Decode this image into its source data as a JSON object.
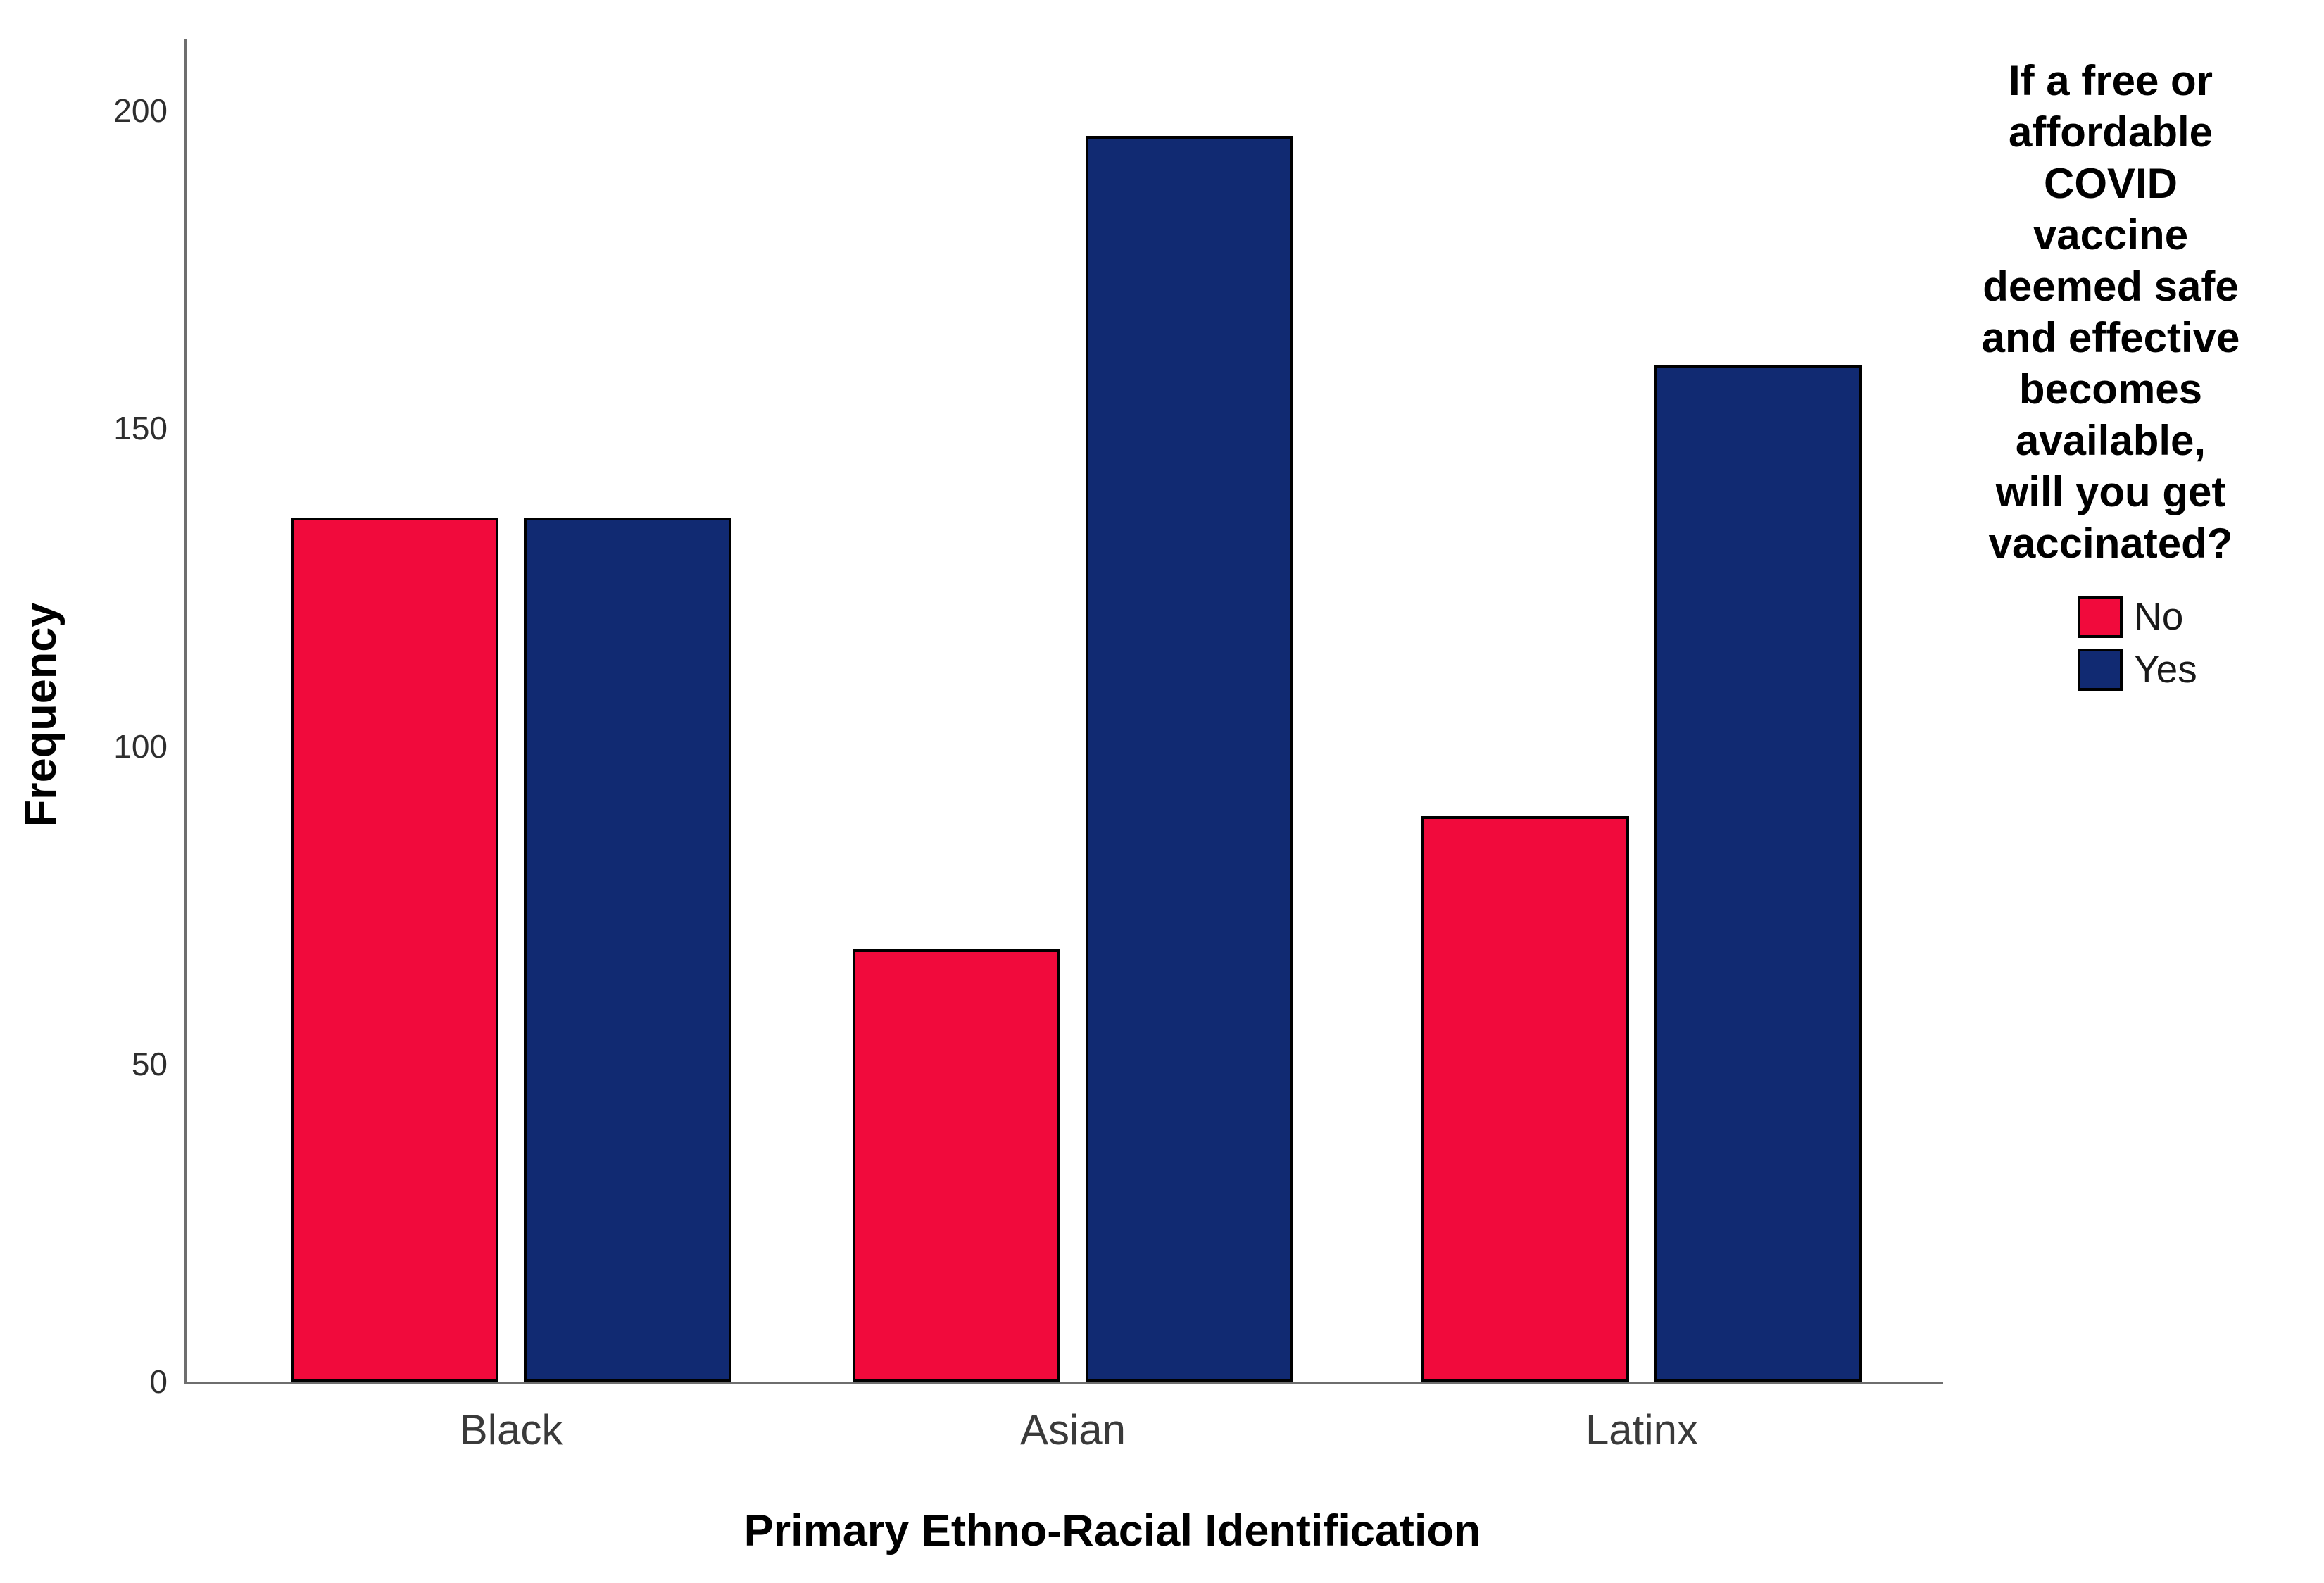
{
  "chart_data": {
    "type": "bar",
    "title": "",
    "categories": [
      "Black",
      "Asian",
      "Latinx"
    ],
    "series": [
      {
        "name": "No",
        "color": "#f10a3c",
        "values": [
          136,
          68,
          89
        ]
      },
      {
        "name": "Yes",
        "color": "#112a72",
        "values": [
          136,
          196,
          160
        ]
      }
    ],
    "xlabel": "Primary Ethno-Racial Identification",
    "ylabel": "Frequency",
    "ylim": [
      0,
      211
    ],
    "yticks": [
      0,
      50,
      100,
      150,
      200
    ],
    "grid": false,
    "legend_position": "right",
    "legend_title": "If a free or affordable COVID vaccine deemed safe and effective becomes available, will you get vaccinated?",
    "legend_title_lines": [
      "If a free or",
      "affordable",
      "COVID",
      "vaccine",
      "deemed safe",
      "and effective",
      "becomes",
      "available,",
      "will you get",
      "vaccinated?"
    ],
    "colors": {
      "axis": "#6e6e6e",
      "bar_border": "#000000",
      "tick_text": "#2e2e2e",
      "category_text": "#3a3a3a",
      "title_text": "#000000"
    }
  }
}
